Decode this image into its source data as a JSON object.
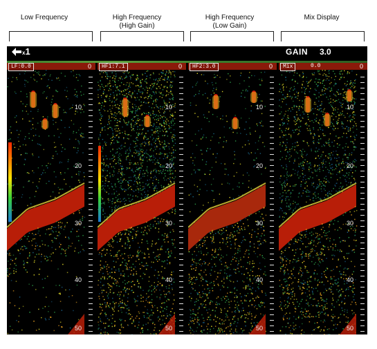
{
  "captions": [
    "Low Frequency",
    "High Frequency\n(High Gain)",
    "High Frequency\n(Low Gain)",
    "Mix Display"
  ],
  "topbar": {
    "multiplier": "1",
    "multiplier_prefix": "x",
    "gain_label": "GAIN",
    "gain_value": "3.0",
    "back_icon": "left-arrow-icon"
  },
  "panels": [
    {
      "tag": "LF:0.0",
      "tag_value": "",
      "zero": "0",
      "depths": [
        "10",
        "20",
        "30",
        "40",
        "50"
      ],
      "scheme": "low"
    },
    {
      "tag": "HF1:7.1",
      "tag_value": "",
      "zero": "0",
      "depths": [
        "10",
        "20",
        "30",
        "40",
        "50"
      ],
      "scheme": "high"
    },
    {
      "tag": "HF2:3.0",
      "tag_value": "",
      "zero": "0",
      "depths": [
        "10",
        "20",
        "30",
        "40",
        "50"
      ],
      "scheme": "lowgain"
    },
    {
      "tag": "Mix",
      "tag_value": "0.0",
      "zero": "0",
      "depths": [
        "10",
        "20",
        "30",
        "40",
        "50"
      ],
      "scheme": "mix"
    }
  ],
  "colors": {
    "background": "#000000",
    "seabed": "#b81e08",
    "noise_green": "#2ea84a",
    "noise_yellow": "#d8d026"
  }
}
